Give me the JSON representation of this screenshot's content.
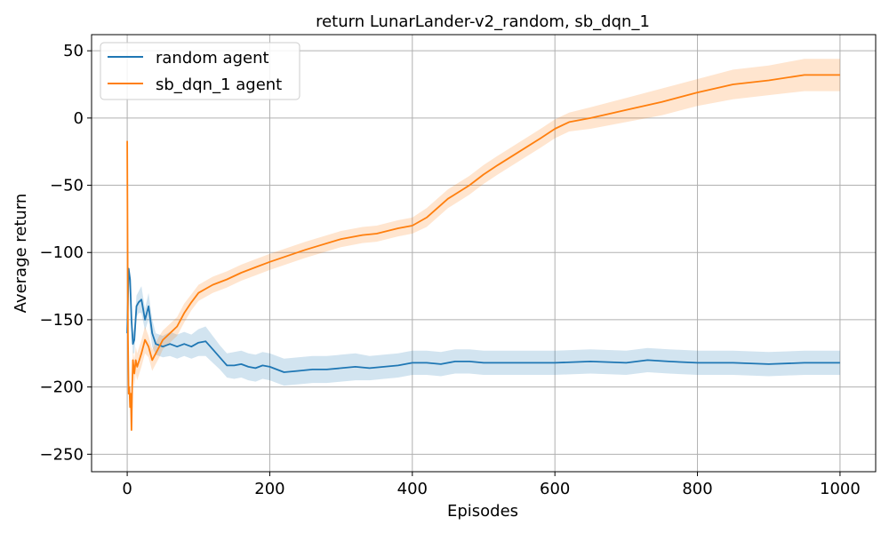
{
  "chart_data": {
    "type": "line",
    "title": "return LunarLander-v2_random, sb_dqn_1",
    "xlabel": "Episodes",
    "ylabel": "Average return",
    "xlim": [
      -50,
      1050
    ],
    "ylim": [
      -263,
      62
    ],
    "grid": true,
    "legend_position": "top-left",
    "x_ticks": [
      0,
      200,
      400,
      600,
      800,
      1000
    ],
    "x_tick_labels": [
      "0",
      "200",
      "400",
      "600",
      "800",
      "1000"
    ],
    "y_ticks": [
      50,
      0,
      -50,
      -100,
      -150,
      -200,
      -250
    ],
    "y_tick_labels": [
      "50",
      "0",
      "−50",
      "−100",
      "−150",
      "−200",
      "−250"
    ],
    "series": [
      {
        "name": "random agent",
        "color": "#1f77b4",
        "band_color": "#1f77b4",
        "x": [
          0,
          2,
          4,
          6,
          8,
          10,
          13,
          16,
          20,
          25,
          30,
          35,
          40,
          50,
          60,
          70,
          80,
          90,
          100,
          110,
          120,
          130,
          140,
          150,
          160,
          170,
          180,
          190,
          200,
          220,
          240,
          260,
          280,
          300,
          320,
          340,
          360,
          380,
          400,
          420,
          440,
          460,
          480,
          500,
          550,
          600,
          650,
          700,
          730,
          760,
          800,
          850,
          900,
          950,
          1000
        ],
        "y": [
          -160,
          -112,
          -120,
          -150,
          -168,
          -165,
          -140,
          -137,
          -135,
          -150,
          -140,
          -160,
          -168,
          -170,
          -168,
          -170,
          -168,
          -170,
          -167,
          -166,
          -172,
          -178,
          -184,
          -184,
          -183,
          -185,
          -186,
          -184,
          -185,
          -189,
          -188,
          -187,
          -187,
          -186,
          -185,
          -186,
          -185,
          -184,
          -182,
          -182,
          -183,
          -181,
          -181,
          -182,
          -182,
          -182,
          -181,
          -182,
          -180,
          -181,
          -182,
          -182,
          -183,
          -182,
          -182
        ],
        "lower": [
          -160,
          -112,
          -122,
          -155,
          -175,
          -175,
          -148,
          -145,
          -145,
          -158,
          -150,
          -170,
          -176,
          -178,
          -177,
          -179,
          -177,
          -179,
          -177,
          -177,
          -182,
          -187,
          -193,
          -194,
          -193,
          -195,
          -196,
          -194,
          -195,
          -199,
          -198,
          -197,
          -197,
          -196,
          -195,
          -195,
          -194,
          -193,
          -191,
          -191,
          -192,
          -190,
          -190,
          -191,
          -191,
          -191,
          -190,
          -191,
          -189,
          -190,
          -191,
          -191,
          -192,
          -191,
          -191
        ],
        "upper": [
          -160,
          -112,
          -118,
          -145,
          -161,
          -155,
          -132,
          -129,
          -125,
          -142,
          -130,
          -150,
          -160,
          -162,
          -159,
          -161,
          -159,
          -161,
          -157,
          -155,
          -162,
          -169,
          -175,
          -174,
          -173,
          -175,
          -176,
          -174,
          -175,
          -179,
          -178,
          -177,
          -177,
          -176,
          -175,
          -177,
          -176,
          -175,
          -173,
          -173,
          -174,
          -172,
          -172,
          -173,
          -173,
          -173,
          -172,
          -173,
          -171,
          -172,
          -173,
          -173,
          -174,
          -173,
          -173
        ]
      },
      {
        "name": "sb_dqn_1 agent",
        "color": "#ff7f0e",
        "band_color": "#ff7f0e",
        "x": [
          0,
          1,
          2,
          3,
          4,
          5,
          6,
          7,
          8,
          10,
          12,
          14,
          17,
          20,
          25,
          30,
          35,
          40,
          45,
          50,
          60,
          70,
          80,
          90,
          100,
          110,
          120,
          140,
          160,
          180,
          200,
          250,
          300,
          330,
          350,
          380,
          400,
          420,
          450,
          480,
          500,
          520,
          550,
          580,
          600,
          620,
          650,
          700,
          750,
          800,
          850,
          900,
          950,
          1000
        ],
        "y": [
          -17,
          -160,
          -205,
          -200,
          -215,
          -205,
          -232,
          -200,
          -180,
          -190,
          -180,
          -185,
          -180,
          -175,
          -165,
          -170,
          -180,
          -175,
          -170,
          -165,
          -160,
          -155,
          -145,
          -137,
          -130,
          -127,
          -124,
          -120,
          -115,
          -111,
          -107,
          -98,
          -90,
          -87,
          -86,
          -82,
          -80,
          -74,
          -60,
          -50,
          -42,
          -35,
          -25,
          -15,
          -8,
          -3,
          0,
          6,
          12,
          19,
          25,
          28,
          32,
          32
        ],
        "lower": [
          -17,
          -160,
          -205,
          -200,
          -215,
          -205,
          -232,
          -205,
          -188,
          -200,
          -190,
          -195,
          -190,
          -185,
          -175,
          -178,
          -188,
          -183,
          -178,
          -172,
          -167,
          -162,
          -152,
          -143,
          -136,
          -133,
          -130,
          -126,
          -121,
          -117,
          -113,
          -104,
          -96,
          -93,
          -92,
          -88,
          -86,
          -81,
          -67,
          -57,
          -49,
          -42,
          -32,
          -22,
          -15,
          -10,
          -8,
          -3,
          2,
          9,
          14,
          17,
          20,
          20
        ],
        "upper": [
          -17,
          -160,
          -205,
          -200,
          -215,
          -205,
          -232,
          -195,
          -172,
          -180,
          -170,
          -175,
          -170,
          -165,
          -155,
          -162,
          -172,
          -167,
          -162,
          -158,
          -153,
          -148,
          -138,
          -131,
          -124,
          -121,
          -118,
          -114,
          -109,
          -105,
          -101,
          -92,
          -84,
          -81,
          -80,
          -76,
          -74,
          -67,
          -53,
          -43,
          -35,
          -28,
          -18,
          -8,
          -1,
          4,
          8,
          15,
          22,
          29,
          36,
          39,
          44,
          44
        ]
      }
    ]
  }
}
